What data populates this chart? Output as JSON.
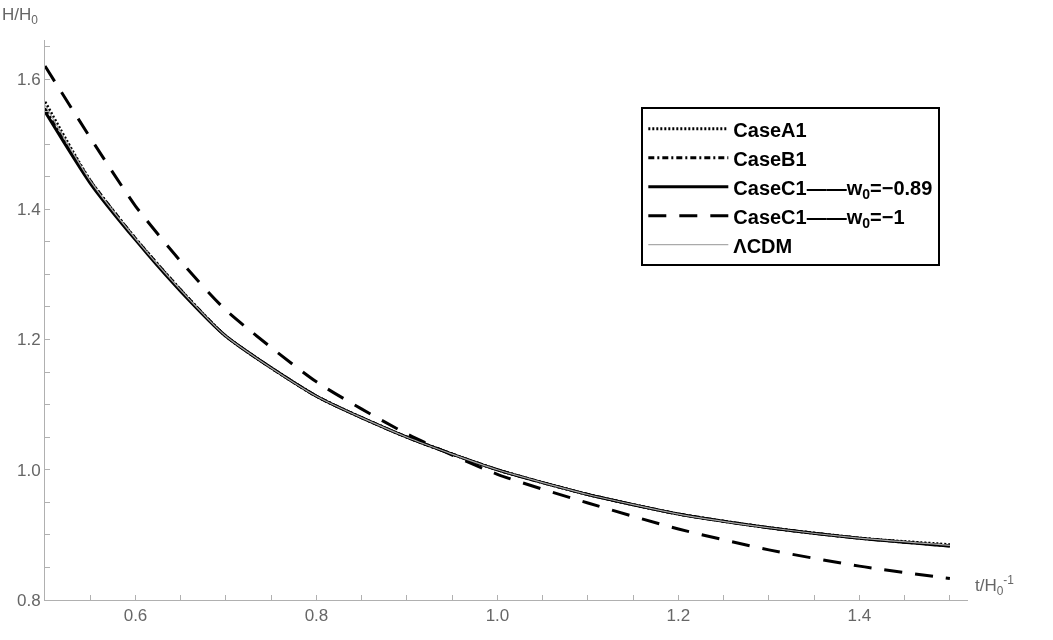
{
  "chart_data": {
    "type": "line",
    "xlabel": "t/H$_{0}$$^{-1}$",
    "ylabel": "H/H$_{0}$",
    "x": [
      0.5,
      0.55,
      0.6,
      0.65,
      0.7,
      0.8,
      0.9,
      1.0,
      1.1,
      1.2,
      1.3,
      1.4,
      1.5
    ],
    "series": [
      {
        "name": "CaseA1",
        "color": "#000000",
        "line_style": "dotted",
        "values": [
          1.565,
          1.444,
          1.355,
          1.276,
          1.205,
          1.113,
          1.05,
          1.0,
          0.962,
          0.932,
          0.911,
          0.895,
          0.885
        ]
      },
      {
        "name": "CaseB1",
        "color": "#000000",
        "line_style": "dashdot",
        "values": [
          1.555,
          1.444,
          1.355,
          1.276,
          1.205,
          1.113,
          1.05,
          1.0,
          0.962,
          0.932,
          0.911,
          0.895,
          0.883
        ]
      },
      {
        "name": "CaseC1——w$_{0}$=−0.89",
        "color": "#000000",
        "line_style": "solid",
        "values": [
          1.55,
          1.44,
          1.353,
          1.274,
          1.205,
          1.113,
          1.05,
          1.0,
          0.962,
          0.932,
          0.911,
          0.895,
          0.883
        ]
      },
      {
        "name": "CaseC1——w$_{0}$=−1",
        "color": "#000000",
        "line_style": "dashed",
        "values": [
          1.62,
          1.51,
          1.405,
          1.32,
          1.245,
          1.135,
          1.055,
          0.993,
          0.949,
          0.909,
          0.877,
          0.852,
          0.833
        ]
      },
      {
        "name": "ΛCDM",
        "color": "#aaaaaa",
        "line_style": "solid",
        "values": [
          1.56,
          1.444,
          1.355,
          1.276,
          1.205,
          1.113,
          1.05,
          1.0,
          0.962,
          0.932,
          0.911,
          0.895,
          0.884
        ]
      }
    ],
    "xlim": [
      0.5,
      1.52
    ],
    "ylim": [
      0.8,
      1.66
    ],
    "xticks": [
      {
        "value": 0.55,
        "label": null
      },
      0.6,
      {
        "value": 0.65,
        "label": null
      },
      {
        "value": 0.7,
        "label": null
      },
      {
        "value": 0.75,
        "label": null
      },
      {
        "value": 0.8,
        "label": "0.8"
      },
      {
        "value": 0.85,
        "label": null
      },
      {
        "value": 0.9,
        "label": null
      },
      {
        "value": 0.95,
        "label": null
      },
      {
        "value": 1.0,
        "label": "1.0"
      },
      {
        "value": 1.05,
        "label": null
      },
      {
        "value": 1.1,
        "label": null
      },
      {
        "value": 1.15,
        "label": null
      },
      {
        "value": 1.2,
        "label": "1.2"
      },
      {
        "value": 1.25,
        "label": null
      },
      {
        "value": 1.3,
        "label": null
      },
      {
        "value": 1.35,
        "label": null
      },
      {
        "value": 1.4,
        "label": "1.4"
      },
      {
        "value": 1.45,
        "label": null
      },
      {
        "value": 1.5,
        "label": null
      }
    ],
    "yticks": [
      {
        "value": 0.8,
        "label": "0.8"
      },
      {
        "value": 0.85,
        "label": null
      },
      {
        "value": 0.9,
        "label": null
      },
      {
        "value": 0.95,
        "label": null
      },
      {
        "value": 1.0,
        "label": "1.0"
      },
      {
        "value": 1.05,
        "label": null
      },
      {
        "value": 1.1,
        "label": null
      },
      {
        "value": 1.15,
        "label": null
      },
      {
        "value": 1.2,
        "label": "1.2"
      },
      {
        "value": 1.25,
        "label": null
      },
      {
        "value": 1.3,
        "label": null
      },
      {
        "value": 1.35,
        "label": null
      },
      {
        "value": 1.4,
        "label": "1.4"
      },
      {
        "value": 1.45,
        "label": null
      },
      {
        "value": 1.5,
        "label": null
      },
      {
        "value": 1.55,
        "label": null
      },
      {
        "value": 1.6,
        "label": "1.6"
      },
      {
        "value": 1.65,
        "label": null
      }
    ],
    "legend": "top right",
    "marker": "none"
  }
}
